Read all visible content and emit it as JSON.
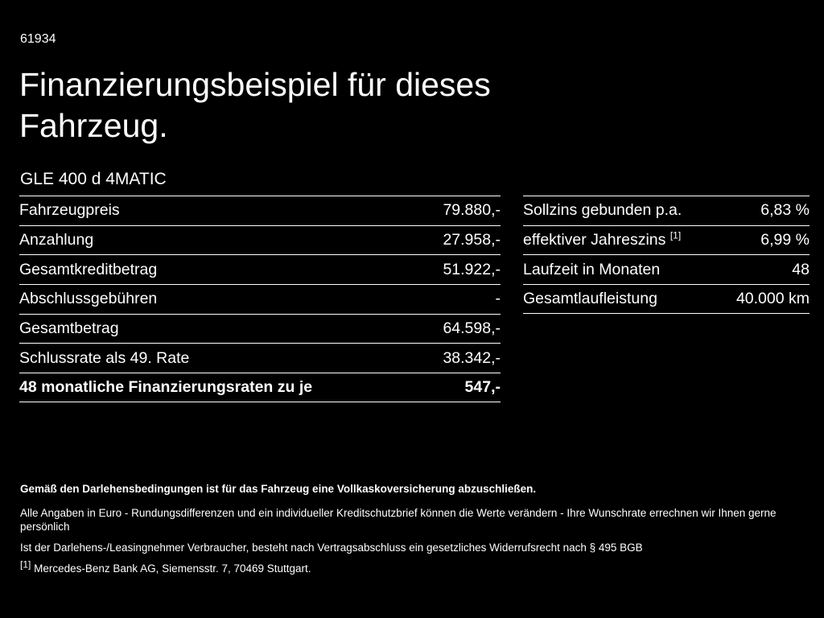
{
  "colors": {
    "background": "#000000",
    "text": "#ffffff",
    "divider_line": "#ffffff"
  },
  "header": {
    "doc_number": "61934",
    "title_line1": "Finanzierungsbeispiel für dieses",
    "title_line2": "Fahrzeug.",
    "model": "GLE 400 d 4MATIC"
  },
  "tables": {
    "left": {
      "rows": [
        {
          "label": "Fahrzeugpreis",
          "value": "79.880,-"
        },
        {
          "label": "Anzahlung",
          "value": "27.958,-"
        },
        {
          "label": "Gesamtkreditbetrag",
          "value": "51.922,-"
        },
        {
          "label": "Abschlussgebühren",
          "value": "-"
        },
        {
          "label": "Gesamtbetrag",
          "value": "64.598,-"
        },
        {
          "label": "Schlussrate als 49. Rate",
          "value": "38.342,-"
        },
        {
          "label": "48 monatliche Finanzierungsraten zu je",
          "value": "547,-"
        }
      ]
    },
    "right": {
      "rows": [
        {
          "label": "Sollzins gebunden p.a.",
          "value": "6,83 %"
        },
        {
          "label": "effektiver Jahreszins",
          "sup": "[1]",
          "value": "6,99 %"
        },
        {
          "label": "Laufzeit in Monaten",
          "value": "48"
        },
        {
          "label": "Gesamtlaufleistung",
          "value": "40.000 km"
        }
      ]
    }
  },
  "footnotes": {
    "bold_note": "Gemäß den Darlehensbedingungen ist für das Fahrzeug eine Vollkaskoversicherung abzuschließen.",
    "note1": "Alle Angaben in Euro - Rundungsdifferenzen und ein individueller Kreditschutzbrief können die Werte verändern - Ihre Wunschrate errechnen wir Ihnen gerne persönlich",
    "note2": "Ist der Darlehens-/Leasingnehmer Verbraucher, besteht nach Vertragsabschluss ein gesetzliches Widerrufsrecht nach § 495 BGB",
    "ref_sup": "[1]",
    "ref_text": "Mercedes-Benz Bank AG, Siemensstr. 7, 70469 Stuttgart."
  }
}
